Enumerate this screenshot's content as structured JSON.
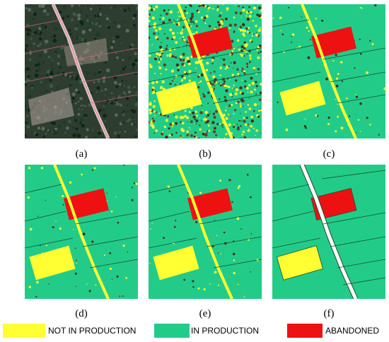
{
  "panels": [
    {
      "label": "(a)",
      "kind": "aerial-photo"
    },
    {
      "label": "(b)",
      "kind": "noisy-classification"
    },
    {
      "label": "(c)",
      "kind": "classification"
    },
    {
      "label": "(d)",
      "kind": "classification"
    },
    {
      "label": "(e)",
      "kind": "classification"
    },
    {
      "label": "(f)",
      "kind": "reference-map"
    }
  ],
  "legend": [
    {
      "label": "NOT IN PRODUCTION",
      "color": "#ffff33"
    },
    {
      "label": "IN PRODUCTION",
      "color": "#22cc88"
    },
    {
      "label": "ABANDONED",
      "color": "#ee1111"
    }
  ],
  "colors": {
    "not_in_production": "#ffff33",
    "in_production": "#22cc88",
    "abandoned": "#ee1111",
    "aerial_base": "#2a3a2c",
    "noise_dark": "#4a2a18"
  }
}
